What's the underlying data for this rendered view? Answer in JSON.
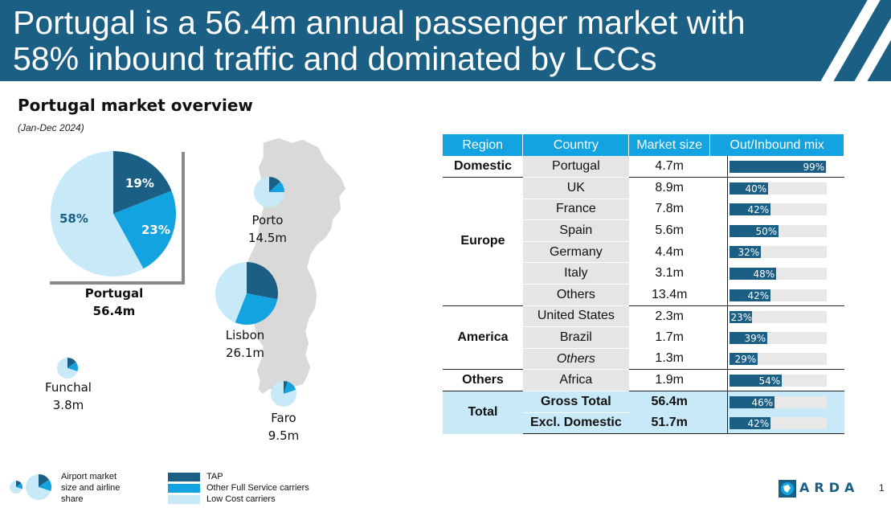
{
  "header": {
    "title": "Portugal is a 56.4m annual passenger market with 58% inbound traffic and dominated by LCCs"
  },
  "section": {
    "title": "Portugal market overview",
    "subtitle": "(Jan-Dec 2024)"
  },
  "colors": {
    "tap": "#1b5f84",
    "full_service": "#13a3e0",
    "lcc": "#c8e9f7",
    "brand": "#1b5f84"
  },
  "big_pie": {
    "name": "Portugal",
    "size": "56.4m",
    "slices": [
      {
        "label": "19%",
        "value": 19,
        "carrier": "TAP"
      },
      {
        "label": "23%",
        "value": 23,
        "carrier": "Other Full Service carriers"
      },
      {
        "label": "58%",
        "value": 58,
        "carrier": "Low Cost carriers"
      }
    ]
  },
  "airports": [
    {
      "name": "Porto",
      "size": "14.5m",
      "shares": [
        13,
        12,
        75
      ]
    },
    {
      "name": "Lisbon",
      "size": "26.1m",
      "shares": [
        28,
        28,
        44
      ]
    },
    {
      "name": "Funchal",
      "size": "3.8m",
      "shares": [
        15,
        15,
        70
      ]
    },
    {
      "name": "Faro",
      "size": "9.5m",
      "shares": [
        5,
        15,
        80
      ]
    }
  ],
  "table": {
    "headers": [
      "Region",
      "Country",
      "Market size",
      "Out/Inbound mix"
    ],
    "rows": [
      {
        "region": "Domestic",
        "country": "Portugal",
        "size": "4.7m",
        "mix": 99,
        "mix_label": "99%"
      },
      {
        "region": "Europe",
        "country": "UK",
        "size": "8.9m",
        "mix": 40,
        "mix_label": "40%"
      },
      {
        "region": "",
        "country": "France",
        "size": "7.8m",
        "mix": 42,
        "mix_label": "42%"
      },
      {
        "region": "",
        "country": "Spain",
        "size": "5.6m",
        "mix": 50,
        "mix_label": "50%"
      },
      {
        "region": "",
        "country": "Germany",
        "size": "4.4m",
        "mix": 32,
        "mix_label": "32%"
      },
      {
        "region": "",
        "country": "Italy",
        "size": "3.1m",
        "mix": 48,
        "mix_label": "48%"
      },
      {
        "region": "",
        "country": "Others",
        "size": "13.4m",
        "mix": 42,
        "mix_label": "42%"
      },
      {
        "region": "America",
        "country": "United States",
        "size": "2.3m",
        "mix": 23,
        "mix_label": "23%"
      },
      {
        "region": "",
        "country": "Brazil",
        "size": "1.7m",
        "mix": 39,
        "mix_label": "39%"
      },
      {
        "region": "",
        "country": "Others",
        "size": "1.3m",
        "mix": 29,
        "mix_label": "29%"
      },
      {
        "region": "Others",
        "country": "Africa",
        "size": "1.9m",
        "mix": 54,
        "mix_label": "54%"
      },
      {
        "region": "Total",
        "country": "Gross Total",
        "size": "56.4m",
        "mix": 46,
        "mix_label": "46%"
      },
      {
        "region": "",
        "country": "Excl. Domestic",
        "size": "51.7m",
        "mix": 42,
        "mix_label": "42%"
      }
    ]
  },
  "legend": {
    "pie_caption": "Airport market size and airline share",
    "items": [
      {
        "label": "TAP",
        "color": "#1b5f84"
      },
      {
        "label": "Other Full Service carriers",
        "color": "#13a3e0"
      },
      {
        "label": "Low Cost carriers",
        "color": "#c8e9f7"
      }
    ]
  },
  "brand": {
    "name": "ARDA"
  },
  "page_number": "1"
}
